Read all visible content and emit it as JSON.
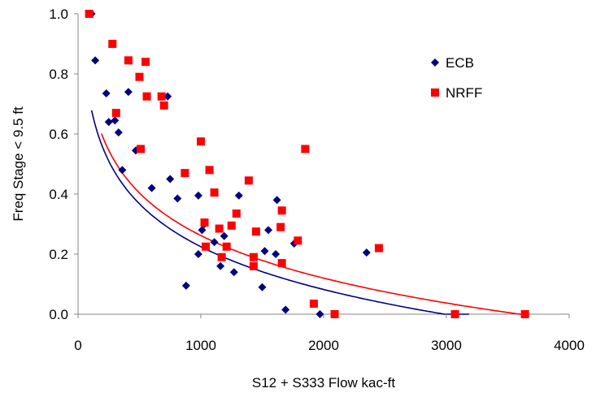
{
  "chart_data": {
    "type": "scatter",
    "xlabel": "S12 + S333 Flow kac-ft",
    "ylabel": "Freq Stage < 9.5 ft",
    "xlim": [
      0,
      4000
    ],
    "ylim": [
      0,
      1
    ],
    "x_ticks": [
      "0",
      "1000",
      "2000",
      "3000",
      "4000"
    ],
    "y_ticks": [
      "0.0",
      "0.2",
      "0.4",
      "0.6",
      "0.8",
      "1.0"
    ],
    "grid": false,
    "legend_position": "top-right",
    "series": [
      {
        "name": "ECB",
        "color": "#000080",
        "marker": "diamond",
        "points": [
          [
            110,
            1.0
          ],
          [
            140,
            0.845
          ],
          [
            230,
            0.735
          ],
          [
            250,
            0.64
          ],
          [
            300,
            0.645
          ],
          [
            330,
            0.605
          ],
          [
            360,
            0.48
          ],
          [
            410,
            0.74
          ],
          [
            470,
            0.545
          ],
          [
            600,
            0.42
          ],
          [
            730,
            0.725
          ],
          [
            750,
            0.45
          ],
          [
            810,
            0.385
          ],
          [
            880,
            0.095
          ],
          [
            980,
            0.395
          ],
          [
            980,
            0.2
          ],
          [
            1010,
            0.28
          ],
          [
            1030,
            0.3
          ],
          [
            1110,
            0.24
          ],
          [
            1150,
            0.285
          ],
          [
            1160,
            0.16
          ],
          [
            1190,
            0.26
          ],
          [
            1270,
            0.14
          ],
          [
            1310,
            0.395
          ],
          [
            1500,
            0.09
          ],
          [
            1520,
            0.21
          ],
          [
            1550,
            0.28
          ],
          [
            1610,
            0.2
          ],
          [
            1620,
            0.38
          ],
          [
            1690,
            0.015
          ],
          [
            1760,
            0.235
          ],
          [
            1970,
            0.0
          ],
          [
            2350,
            0.205
          ],
          [
            3070,
            0.0
          ]
        ],
        "fit": {
          "a": 1.645,
          "b": 0.2056,
          "x_start": 110,
          "x_end": 3185
        }
      },
      {
        "name": "NRFF",
        "color": "#ff0000",
        "marker": "square",
        "points": [
          [
            90,
            1.0
          ],
          [
            280,
            0.9
          ],
          [
            310,
            0.67
          ],
          [
            410,
            0.845
          ],
          [
            500,
            0.79
          ],
          [
            510,
            0.55
          ],
          [
            550,
            0.84
          ],
          [
            560,
            0.725
          ],
          [
            680,
            0.725
          ],
          [
            700,
            0.695
          ],
          [
            870,
            0.47
          ],
          [
            1000,
            0.575
          ],
          [
            1030,
            0.305
          ],
          [
            1040,
            0.225
          ],
          [
            1070,
            0.48
          ],
          [
            1110,
            0.405
          ],
          [
            1150,
            0.285
          ],
          [
            1170,
            0.19
          ],
          [
            1210,
            0.225
          ],
          [
            1250,
            0.295
          ],
          [
            1290,
            0.335
          ],
          [
            1390,
            0.445
          ],
          [
            1430,
            0.19
          ],
          [
            1430,
            0.16
          ],
          [
            1450,
            0.275
          ],
          [
            1650,
            0.29
          ],
          [
            1660,
            0.345
          ],
          [
            1660,
            0.17
          ],
          [
            1790,
            0.245
          ],
          [
            1850,
            0.55
          ],
          [
            1920,
            0.035
          ],
          [
            2090,
            0.0
          ],
          [
            2450,
            0.22
          ],
          [
            3070,
            0.0
          ],
          [
            3640,
            0.0
          ]
        ],
        "fit": {
          "a": 1.6745,
          "b": 0.2045,
          "x_start": 190,
          "x_end": 3640
        }
      }
    ]
  }
}
